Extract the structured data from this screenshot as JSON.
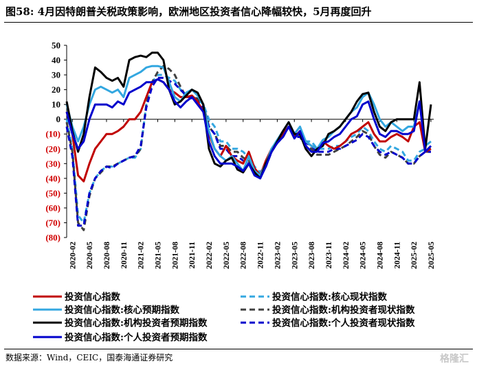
{
  "title": "图58:  4月因特朗普关税政策影响，欧洲地区投资者信心降幅较快，5月再度回升",
  "source": "数据来源：Wind，CEIC，国泰海通证券研究",
  "watermark": "格隆汇",
  "colors": {
    "negative_tick": "#d00000",
    "positive_tick": "#000000"
  },
  "chart_data": {
    "type": "line",
    "ylim": [
      -80,
      50
    ],
    "yticks": [
      50,
      40,
      30,
      20,
      10,
      0,
      -10,
      -20,
      -30,
      -40,
      -50,
      -60,
      -70,
      -80
    ],
    "ytick_labels": [
      "50",
      "40",
      "30",
      "20",
      "10",
      "0",
      "(10)",
      "(20)",
      "(30)",
      "(40)",
      "(50)",
      "(60)",
      "(70)",
      "(80)"
    ],
    "x": [
      "2020-01",
      "2020-02",
      "2020-03",
      "2020-04",
      "2020-05",
      "2020-06",
      "2020-07",
      "2020-08",
      "2020-09",
      "2020-10",
      "2020-11",
      "2020-12",
      "2021-01",
      "2021-02",
      "2021-03",
      "2021-04",
      "2021-05",
      "2021-06",
      "2021-07",
      "2021-08",
      "2021-09",
      "2021-10",
      "2021-11",
      "2021-12",
      "2022-01",
      "2022-02",
      "2022-03",
      "2022-04",
      "2022-05",
      "2022-06",
      "2022-07",
      "2022-08",
      "2022-09",
      "2022-10",
      "2022-11",
      "2022-12",
      "2023-01",
      "2023-02",
      "2023-03",
      "2023-04",
      "2023-05",
      "2023-06",
      "2023-07",
      "2023-08",
      "2023-09",
      "2023-10",
      "2023-11",
      "2023-12",
      "2024-01",
      "2024-02",
      "2024-03",
      "2024-04",
      "2024-05",
      "2024-06",
      "2024-07",
      "2024-08",
      "2024-09",
      "2024-10",
      "2024-11",
      "2024-12",
      "2025-01",
      "2025-02",
      "2025-03",
      "2025-04",
      "2025-05"
    ],
    "xtick_labels": [
      "2020-02",
      "2020-05",
      "2020-08",
      "2020-11",
      "2021-02",
      "2021-05",
      "2021-08",
      "2021-11",
      "2022-02",
      "2022-05",
      "2022-08",
      "2022-11",
      "2023-02",
      "2023-05",
      "2023-08",
      "2023-11",
      "2024-02",
      "2024-05",
      "2024-08",
      "2024-11",
      "2025-02",
      "2025-05"
    ],
    "series": [
      {
        "name": "投资信心指数",
        "color": "#c00000",
        "dash": false,
        "values": [
          5,
          -10,
          -38,
          -42,
          -30,
          -20,
          -15,
          -10,
          -10,
          -8,
          -5,
          0,
          0,
          5,
          15,
          25,
          27,
          25,
          20,
          18,
          15,
          15,
          16,
          12,
          5,
          -10,
          -20,
          -25,
          -18,
          -25,
          -28,
          -30,
          -22,
          -33,
          -38,
          -28,
          -20,
          -15,
          -10,
          -5,
          -12,
          -8,
          -15,
          -18,
          -20,
          -15,
          -18,
          -20,
          -18,
          -15,
          -10,
          -8,
          -5,
          -2,
          -10,
          -15,
          -15,
          -12,
          -10,
          -12,
          -15,
          -5,
          -2,
          -22,
          -20
        ]
      },
      {
        "name": "投资信心指数:核心预期指数",
        "color": "#33a7e0",
        "dash": false,
        "values": [
          10,
          -5,
          -15,
          -5,
          10,
          20,
          22,
          20,
          18,
          20,
          15,
          28,
          30,
          32,
          35,
          36,
          36,
          35,
          25,
          15,
          12,
          18,
          20,
          16,
          10,
          -8,
          -20,
          -25,
          -28,
          -25,
          -30,
          -35,
          -25,
          -35,
          -38,
          -30,
          -20,
          -14,
          -8,
          -2,
          -10,
          -5,
          -15,
          -18,
          -20,
          -14,
          -12,
          -8,
          -5,
          0,
          5,
          8,
          15,
          18,
          10,
          0,
          -5,
          -2,
          -5,
          -8,
          -5,
          -5,
          12,
          -18,
          -15
        ]
      },
      {
        "name": "投资信心指数:机构投资者预期指数",
        "color": "#000000",
        "dash": false,
        "values": [
          12,
          -8,
          -22,
          -10,
          15,
          35,
          32,
          28,
          26,
          28,
          22,
          40,
          42,
          43,
          42,
          45,
          45,
          40,
          20,
          10,
          12,
          16,
          20,
          18,
          10,
          -20,
          -30,
          -32,
          -28,
          -26,
          -34,
          -36,
          -30,
          -36,
          -40,
          -30,
          -22,
          -15,
          -8,
          -2,
          -10,
          -10,
          -20,
          -25,
          -20,
          -18,
          -10,
          -8,
          -5,
          0,
          5,
          12,
          17,
          18,
          5,
          -5,
          -8,
          -2,
          0,
          0,
          0,
          0,
          25,
          -20,
          10
        ]
      },
      {
        "name": "投资信心指数:个人投资者预期指数",
        "color": "#0000cc",
        "dash": false,
        "values": [
          5,
          -10,
          -20,
          -15,
          0,
          10,
          10,
          10,
          8,
          12,
          10,
          18,
          20,
          22,
          25,
          25,
          27,
          25,
          20,
          12,
          8,
          12,
          15,
          10,
          5,
          -15,
          -25,
          -30,
          -30,
          -30,
          -32,
          -35,
          -30,
          -38,
          -40,
          -32,
          -22,
          -16,
          -12,
          -5,
          -13,
          -8,
          -18,
          -22,
          -22,
          -16,
          -15,
          -12,
          -10,
          -5,
          0,
          2,
          10,
          12,
          0,
          -10,
          -12,
          -8,
          -8,
          -10,
          -10,
          -8,
          12,
          -22,
          -18
        ]
      },
      {
        "name": "投资信心指数:核心现状指数",
        "color": "#33a7e0",
        "dash": true,
        "values": [
          0,
          -20,
          -65,
          -70,
          -50,
          -40,
          -35,
          -32,
          -32,
          -30,
          -28,
          -26,
          -26,
          -20,
          10,
          25,
          30,
          30,
          28,
          26,
          20,
          15,
          15,
          14,
          10,
          0,
          -5,
          -15,
          -15,
          -20,
          -20,
          -22,
          -26,
          -32,
          -36,
          -30,
          -20,
          -14,
          -10,
          -5,
          -10,
          -10,
          -15,
          -15,
          -20,
          -20,
          -20,
          -18,
          -18,
          -15,
          -12,
          -10,
          -5,
          -8,
          -15,
          -20,
          -22,
          -18,
          -20,
          -22,
          -28,
          -28,
          -22,
          -20,
          -20
        ]
      },
      {
        "name": "投资信心指数:机构投资者现状指数",
        "color": "#404040",
        "dash": true,
        "values": [
          -2,
          -22,
          -70,
          -75,
          -52,
          -40,
          -36,
          -32,
          -32,
          -30,
          -28,
          -26,
          -25,
          -20,
          10,
          25,
          32,
          36,
          34,
          30,
          22,
          15,
          15,
          14,
          10,
          -5,
          -10,
          -18,
          -18,
          -22,
          -22,
          -26,
          -28,
          -34,
          -38,
          -32,
          -22,
          -16,
          -12,
          -5,
          -10,
          -12,
          -18,
          -20,
          -24,
          -24,
          -24,
          -22,
          -20,
          -18,
          -15,
          -12,
          -8,
          -10,
          -18,
          -24,
          -26,
          -22,
          -24,
          -26,
          -30,
          -30,
          -25,
          -22,
          -22
        ]
      },
      {
        "name": "投资信心指数:个人投资者现状指数",
        "color": "#0000cc",
        "dash": true,
        "values": [
          -5,
          -25,
          -72,
          -72,
          -50,
          -40,
          -35,
          -32,
          -33,
          -30,
          -28,
          -26,
          -25,
          -18,
          8,
          22,
          28,
          28,
          26,
          24,
          20,
          16,
          14,
          12,
          8,
          -5,
          -10,
          -20,
          -20,
          -25,
          -25,
          -28,
          -30,
          -34,
          -38,
          -32,
          -22,
          -16,
          -12,
          -5,
          -12,
          -12,
          -16,
          -18,
          -22,
          -22,
          -22,
          -20,
          -20,
          -18,
          -16,
          -14,
          -10,
          -12,
          -18,
          -22,
          -24,
          -22,
          -24,
          -26,
          -30,
          -30,
          -25,
          -22,
          -22
        ]
      }
    ]
  }
}
